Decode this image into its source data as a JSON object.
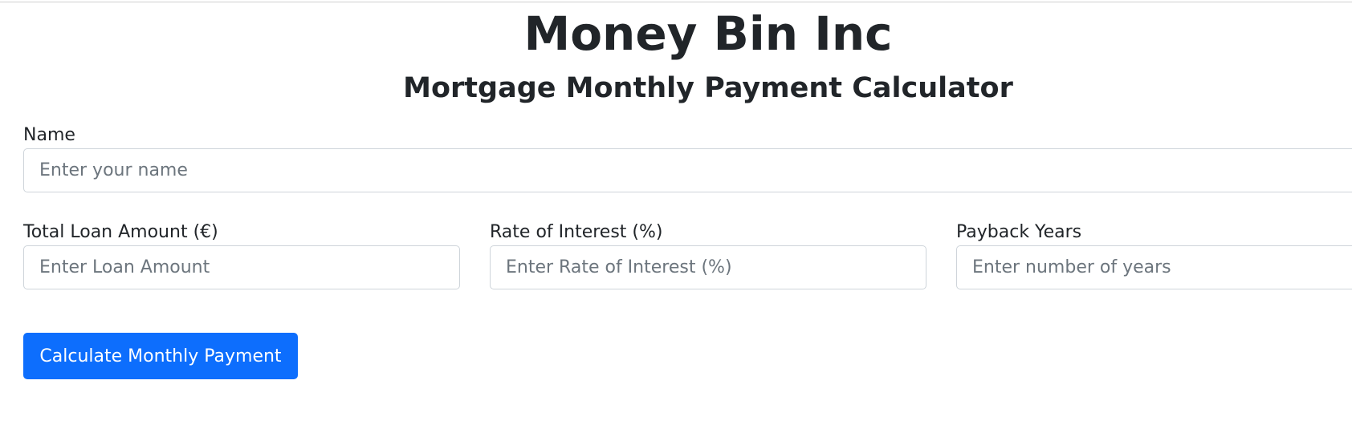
{
  "header": {
    "title": "Money Bin Inc",
    "subtitle": "Mortgage Monthly Payment Calculator"
  },
  "form": {
    "name": {
      "label": "Name",
      "placeholder": "Enter your name",
      "value": ""
    },
    "loan_amount": {
      "label": "Total Loan Amount (€)",
      "placeholder": "Enter Loan Amount",
      "value": ""
    },
    "interest_rate": {
      "label": "Rate of Interest (%)",
      "placeholder": "Enter Rate of Interest (%)",
      "value": ""
    },
    "payback_years": {
      "label": "Payback Years",
      "placeholder": "Enter number of years",
      "value": ""
    },
    "submit_label": "Calculate Monthly Payment"
  },
  "colors": {
    "primary": "#0d6efd",
    "text": "#212529",
    "placeholder": "#6c757d",
    "input_border": "#ced4da"
  }
}
